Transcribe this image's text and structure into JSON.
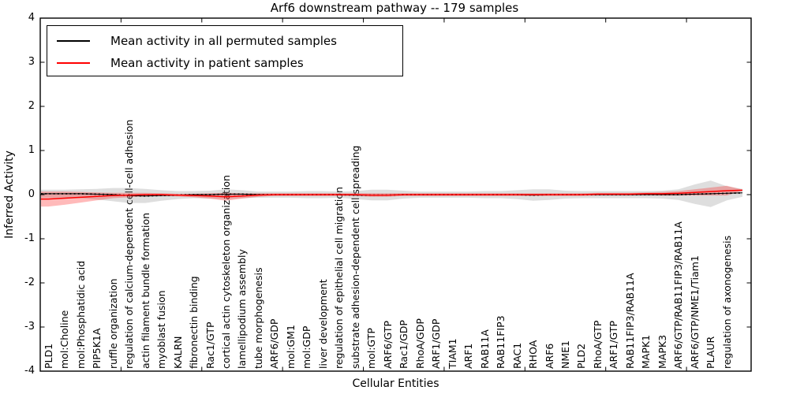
{
  "title": "Arf6 downstream pathway -- 179 samples",
  "axes": {
    "ylabel": "Inferred Activity",
    "xlabel": "Cellular Entities",
    "yticks": [
      "4",
      "3",
      "2",
      "1",
      "0",
      "-1",
      "-2",
      "-3",
      "-4"
    ],
    "ylim": [
      -4,
      4
    ]
  },
  "legend": [
    {
      "label": "Mean activity in all permuted samples",
      "color": "#000000"
    },
    {
      "label": "Mean activity in patient samples",
      "color": "#ff0000"
    }
  ],
  "colors": {
    "permuted_line": "#000000",
    "patient_line": "#ff0000",
    "permuted_band": "#999999",
    "patient_band": "#ff0000",
    "axis": "#000000",
    "background": "#ffffff"
  },
  "chart_data": {
    "type": "line",
    "title": "Arf6 downstream pathway -- 179 samples",
    "xlabel": "Cellular Entities",
    "ylabel": "Inferred Activity",
    "ylim": [
      -4,
      4
    ],
    "grid": false,
    "legend_position": "upper left",
    "categories": [
      "PLD1",
      "mol:Choline",
      "mol:Phosphatidic acid",
      "PIP5K1A",
      "ruffle organization",
      "regulation of calcium-dependent cell-cell adhesion",
      "actin filament bundle formation",
      "myoblast fusion",
      "KALRN",
      "fibronectin binding",
      "Rac1/GTP",
      "cortical actin cytoskeleton organization",
      "lamellipodium assembly",
      "tube morphogenesis",
      "ARF6/GDP",
      "mol:GM1",
      "mol:GDP",
      "liver development",
      "regulation of epithelial cell migration",
      "substrate adhesion-dependent cell spreading",
      "mol:GTP",
      "ARF6/GTP",
      "Rac1/GDP",
      "RhoA/GDP",
      "ARF1/GDP",
      "TIAM1",
      "ARF1",
      "RAB11A",
      "RAB11FIP3",
      "RAC1",
      "RHOA",
      "ARF6",
      "NME1",
      "PLD2",
      "RhoA/GTP",
      "ARF1/GTP",
      "RAB11FIP3/RAB11A",
      "MAPK1",
      "MAPK3",
      "ARF6/GTP/RAB11FIP3/RAB11A",
      "ARF6/GTP/NME1/Tiam1",
      "PLAUR",
      "regulation of axonogenesis"
    ],
    "series": [
      {
        "name": "Mean activity in all permuted samples",
        "color": "#000000",
        "values": [
          0.02,
          0.02,
          0.02,
          0.01,
          0.0,
          -0.02,
          -0.03,
          -0.02,
          -0.01,
          0.0,
          0.0,
          0.01,
          0.01,
          0.0,
          0.0,
          0.0,
          0.0,
          0.0,
          0.0,
          -0.01,
          -0.01,
          -0.01,
          0.0,
          0.0,
          0.0,
          0.0,
          0.0,
          0.0,
          0.0,
          0.0,
          -0.01,
          0.0,
          0.0,
          0.0,
          0.0,
          0.0,
          0.0,
          0.0,
          0.0,
          0.0,
          0.01,
          0.02,
          0.03
        ],
        "band": [
          0.09,
          0.09,
          0.1,
          0.12,
          0.15,
          0.17,
          0.16,
          0.12,
          0.09,
          0.08,
          0.09,
          0.11,
          0.09,
          0.07,
          0.07,
          0.07,
          0.08,
          0.08,
          0.07,
          0.09,
          0.12,
          0.12,
          0.09,
          0.07,
          0.07,
          0.07,
          0.07,
          0.08,
          0.08,
          0.1,
          0.13,
          0.12,
          0.09,
          0.08,
          0.08,
          0.08,
          0.08,
          0.08,
          0.09,
          0.12,
          0.22,
          0.3,
          0.16
        ]
      },
      {
        "name": "Mean activity in patient samples",
        "color": "#ff0000",
        "values": [
          -0.1,
          -0.08,
          -0.06,
          -0.04,
          -0.02,
          -0.01,
          0.0,
          0.0,
          -0.01,
          -0.02,
          -0.03,
          -0.05,
          -0.03,
          -0.01,
          0.0,
          0.0,
          0.0,
          0.0,
          0.0,
          0.0,
          -0.01,
          -0.01,
          0.0,
          0.0,
          0.0,
          0.0,
          0.0,
          0.0,
          0.0,
          0.0,
          0.0,
          0.0,
          0.0,
          0.0,
          0.01,
          0.01,
          0.01,
          0.02,
          0.02,
          0.03,
          0.05,
          0.07,
          0.09
        ],
        "band": [
          0.17,
          0.15,
          0.12,
          0.09,
          0.06,
          0.05,
          0.04,
          0.03,
          0.03,
          0.04,
          0.06,
          0.09,
          0.06,
          0.04,
          0.03,
          0.03,
          0.03,
          0.03,
          0.03,
          0.03,
          0.04,
          0.04,
          0.03,
          0.03,
          0.03,
          0.03,
          0.03,
          0.03,
          0.03,
          0.03,
          0.03,
          0.03,
          0.03,
          0.03,
          0.03,
          0.03,
          0.03,
          0.03,
          0.04,
          0.05,
          0.07,
          0.09,
          0.11
        ]
      }
    ]
  }
}
